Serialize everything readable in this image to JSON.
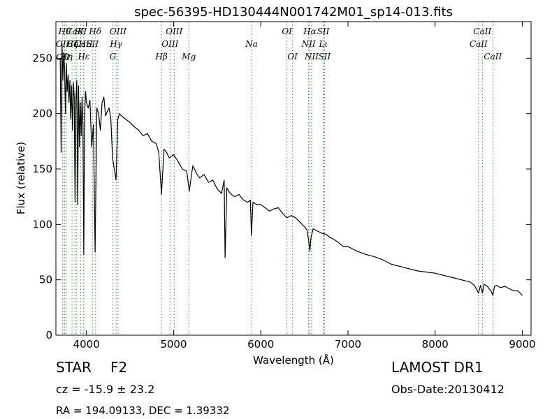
{
  "chart_data": {
    "type": "line",
    "title": "spec-56395-HD130444N001742M01_sp14-013.fits",
    "xlabel": "Wavelength (Å)",
    "ylabel": "Flux (relative)",
    "xlim": [
      3650,
      9100
    ],
    "ylim": [
      0,
      283
    ],
    "xticks": [
      "4000",
      "5000",
      "6000",
      "7000",
      "8000",
      "9000"
    ],
    "yticks": [
      "0",
      "50",
      "100",
      "150",
      "200",
      "250"
    ],
    "grid": false,
    "legend": "none",
    "line_color": "#000000",
    "marker_color": "#2ca02c",
    "series": [
      {
        "x": [
          3700,
          3710,
          3720,
          3730,
          3740,
          3750,
          3760,
          3770,
          3780,
          3790,
          3800,
          3810,
          3820,
          3830,
          3840,
          3850,
          3860,
          3870,
          3880,
          3890,
          3900,
          3910,
          3920,
          3930,
          3940,
          3950,
          3960,
          3970,
          3980,
          3990,
          4000,
          4020,
          4040,
          4060,
          4080,
          4100,
          4120,
          4140,
          4160,
          4180,
          4200,
          4220,
          4240,
          4260,
          4280,
          4300,
          4320,
          4340,
          4360,
          4380,
          4400,
          4450,
          4500,
          4550,
          4600,
          4650,
          4700,
          4750,
          4800,
          4830,
          4861,
          4890,
          4920,
          4950,
          5000,
          5050,
          5100,
          5150,
          5180,
          5220,
          5270,
          5300,
          5350,
          5400,
          5450,
          5500,
          5550,
          5580,
          5590,
          5610,
          5650,
          5700,
          5750,
          5800,
          5850,
          5880,
          5893,
          5910,
          5950,
          6000,
          6050,
          6100,
          6150,
          6200,
          6250,
          6300,
          6350,
          6400,
          6450,
          6500,
          6530,
          6550,
          6563,
          6575,
          6600,
          6650,
          6700,
          6750,
          6800,
          6850,
          6900,
          6950,
          7000,
          7100,
          7200,
          7300,
          7400,
          7500,
          7600,
          7700,
          7800,
          7900,
          8000,
          8100,
          8200,
          8300,
          8400,
          8450,
          8498,
          8520,
          8542,
          8560,
          8600,
          8640,
          8662,
          8680,
          8700,
          8750,
          8800,
          8850,
          8900,
          8950,
          9000
        ],
        "y": [
          250,
          165,
          262,
          230,
          255,
          240,
          200,
          245,
          220,
          235,
          210,
          230,
          195,
          225,
          185,
          228,
          215,
          120,
          212,
          230,
          118,
          225,
          170,
          210,
          180,
          215,
          190,
          73,
          200,
          220,
          210,
          205,
          212,
          170,
          190,
          75,
          205,
          200,
          185,
          210,
          215,
          198,
          202,
          205,
          195,
          160,
          150,
          140,
          195,
          200,
          198,
          195,
          192,
          188,
          185,
          180,
          182,
          175,
          173,
          165,
          127,
          168,
          165,
          160,
          163,
          157,
          150,
          148,
          130,
          153,
          145,
          142,
          145,
          138,
          140,
          132,
          128,
          140,
          70,
          133,
          128,
          125,
          127,
          122,
          120,
          122,
          90,
          120,
          118,
          118,
          115,
          112,
          114,
          115,
          110,
          106,
          108,
          106,
          102,
          98,
          95,
          85,
          76,
          88,
          96,
          94,
          92,
          91,
          88,
          86,
          83,
          80,
          80,
          76,
          73,
          71,
          68,
          64,
          62,
          60,
          58,
          57,
          56,
          54,
          52,
          50,
          48,
          45,
          38,
          45,
          38,
          46,
          44,
          40,
          36,
          44,
          45,
          43,
          44,
          42,
          40,
          40,
          36
        ]
      }
    ],
    "lines": [
      {
        "label": "OII",
        "wl": 3727,
        "row": 2
      },
      {
        "label": "OII",
        "wl": 3729,
        "row": 4
      },
      {
        "label": "Hθ",
        "wl": 3750,
        "row": 1
      },
      {
        "label": "Hη",
        "wl": 3770,
        "row": 3
      },
      {
        "label": "Hζ",
        "wl": 3835,
        "row": 2
      },
      {
        "label": "CaK",
        "wl": 3868,
        "row": 1
      },
      {
        "label": "CaH",
        "wl": 3889,
        "row": 2
      },
      {
        "label": "SII",
        "wl": 3934,
        "row": 1
      },
      {
        "label": "CaII",
        "wl": 3968,
        "row": 2
      },
      {
        "label": "Hε",
        "wl": 3970,
        "row": 3
      },
      {
        "label": "Hδ",
        "wl": 4101,
        "row": 1
      },
      {
        "label": "SII",
        "wl": 4069,
        "row": 2
      },
      {
        "label": "G",
        "wl": 4304,
        "row": 3
      },
      {
        "label": "Hγ",
        "wl": 4340,
        "row": 2
      },
      {
        "label": "OIII",
        "wl": 4363,
        "row": 1
      },
      {
        "label": "Hβ",
        "wl": 4861,
        "row": 3
      },
      {
        "label": "OIII",
        "wl": 4959,
        "row": 2
      },
      {
        "label": "OIII",
        "wl": 5007,
        "row": 1
      },
      {
        "label": "Mg",
        "wl": 5175,
        "row": 3
      },
      {
        "label": "Na",
        "wl": 5894,
        "row": 2
      },
      {
        "label": "OI",
        "wl": 6300,
        "row": 1
      },
      {
        "label": "OI",
        "wl": 6364,
        "row": 3
      },
      {
        "label": "NII",
        "wl": 6548,
        "row": 2
      },
      {
        "label": "Hα",
        "wl": 6563,
        "row": 1
      },
      {
        "label": "NII",
        "wl": 6583,
        "row": 3
      },
      {
        "label": "SII",
        "wl": 6716,
        "row": 1
      },
      {
        "label": "Lι",
        "wl": 6718,
        "row": 2
      },
      {
        "label": "SII",
        "wl": 6731,
        "row": 3
      },
      {
        "label": "CaII",
        "wl": 8498,
        "row": 2
      },
      {
        "label": "CaII",
        "wl": 8542,
        "row": 1
      },
      {
        "label": "CaII",
        "wl": 8662,
        "row": 3
      }
    ]
  },
  "info": {
    "object_class": "STAR",
    "subclass": "F2",
    "redshift": "cz = -15.9 ± 23.2",
    "coords": "RA = 194.09133, DEC = 1.39332",
    "survey": "LAMOST DR1",
    "obs_date": "Obs-Date:20130412"
  }
}
